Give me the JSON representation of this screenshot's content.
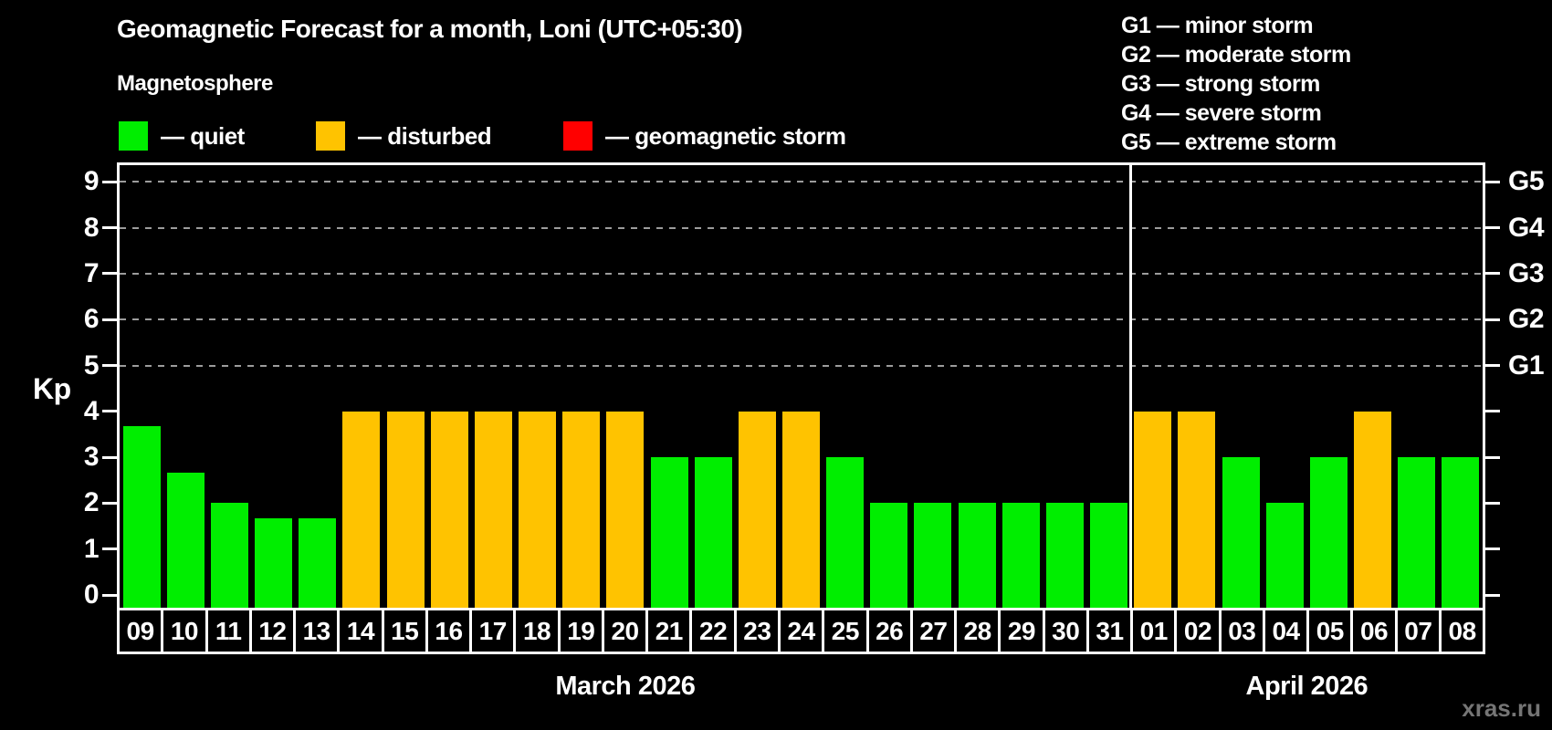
{
  "title": "Geomagnetic Forecast for a month, Loni (UTC+05:30)",
  "subtitle": "Magnetosphere",
  "legend": {
    "items": [
      {
        "key": "quiet",
        "label": "— quiet",
        "color": "#00ee00"
      },
      {
        "key": "disturbed",
        "label": "— disturbed",
        "color": "#ffc300"
      },
      {
        "key": "storm",
        "label": "— geomagnetic storm",
        "color": "#ff0000"
      }
    ]
  },
  "storm_scale_legend": [
    "G1 — minor storm",
    "G2 — moderate storm",
    "G3 — strong storm",
    "G4 — severe storm",
    "G5 — extreme storm"
  ],
  "watermark": "xras.ru",
  "chart_data": {
    "type": "bar",
    "ylabel": "Kp",
    "ylim": [
      0,
      9
    ],
    "yticks": [
      0,
      1,
      2,
      3,
      4,
      5,
      6,
      7,
      8,
      9
    ],
    "gridlines_at": [
      5,
      6,
      7,
      8,
      9
    ],
    "grid": "dashed-horizontal",
    "right_axis": [
      {
        "label": "G1",
        "kp": 5
      },
      {
        "label": "G2",
        "kp": 6
      },
      {
        "label": "G3",
        "kp": 7
      },
      {
        "label": "G4",
        "kp": 8
      },
      {
        "label": "G5",
        "kp": 9
      }
    ],
    "months": [
      {
        "label": "March 2026",
        "days": 23
      },
      {
        "label": "April 2026",
        "days": 8
      }
    ],
    "categories": [
      "09",
      "10",
      "11",
      "12",
      "13",
      "14",
      "15",
      "16",
      "17",
      "18",
      "19",
      "20",
      "21",
      "22",
      "23",
      "24",
      "25",
      "26",
      "27",
      "28",
      "29",
      "30",
      "31",
      "01",
      "02",
      "03",
      "04",
      "05",
      "06",
      "07",
      "08"
    ],
    "values": [
      3.67,
      2.67,
      2,
      1.67,
      1.67,
      4,
      4,
      4,
      4,
      4,
      4,
      4,
      3,
      3,
      4,
      4,
      3,
      2,
      2,
      2,
      2,
      2,
      2,
      4,
      4,
      3,
      2,
      3,
      4,
      3,
      3
    ],
    "states": [
      "quiet",
      "quiet",
      "quiet",
      "quiet",
      "quiet",
      "disturbed",
      "disturbed",
      "disturbed",
      "disturbed",
      "disturbed",
      "disturbed",
      "disturbed",
      "quiet",
      "quiet",
      "disturbed",
      "disturbed",
      "quiet",
      "quiet",
      "quiet",
      "quiet",
      "quiet",
      "quiet",
      "quiet",
      "disturbed",
      "disturbed",
      "quiet",
      "quiet",
      "quiet",
      "disturbed",
      "quiet",
      "quiet"
    ],
    "colors": {
      "quiet": "#00ee00",
      "disturbed": "#ffc300",
      "storm": "#ff0000"
    },
    "legend_position": "top",
    "background": "#000000"
  }
}
